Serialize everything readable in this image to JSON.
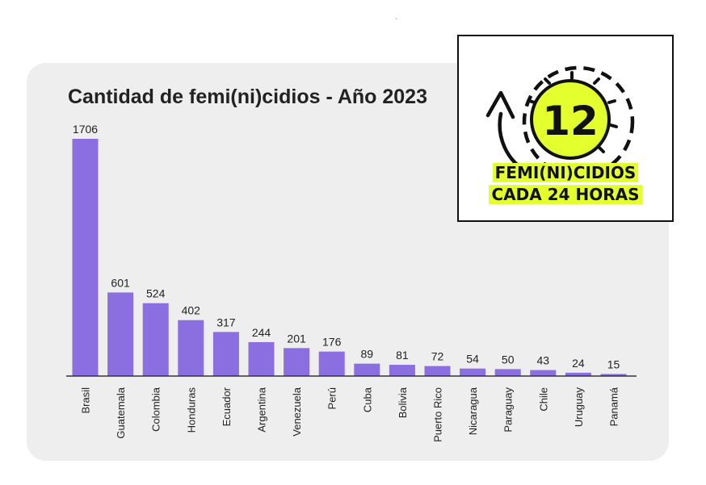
{
  "header_mark": "`",
  "badge": {
    "number": "12",
    "line1": "FEMI(NI)CIDIOS",
    "line2": "CADA 24 HORAS",
    "accent_color": "#e3ff2e"
  },
  "chart_data": {
    "type": "bar",
    "title": "Cantidad de femi(ni)cidios - Año 2023",
    "categories": [
      "Brasil",
      "Guatemala",
      "Colombia",
      "Honduras",
      "Ecuador",
      "Argentina",
      "Venezuela",
      "Perú",
      "Cuba",
      "Bolivia",
      "Puerto Rico",
      "Nicaragua",
      "Paraguay",
      "Chile",
      "Uruguay",
      "Panamá"
    ],
    "values": [
      1706,
      601,
      524,
      402,
      317,
      244,
      201,
      176,
      89,
      81,
      72,
      54,
      50,
      43,
      24,
      15
    ],
    "xlabel": "",
    "ylabel": "",
    "ylim": [
      0,
      1706
    ],
    "bar_color": "#8b6ee0",
    "data_labels": true,
    "grid": false
  }
}
